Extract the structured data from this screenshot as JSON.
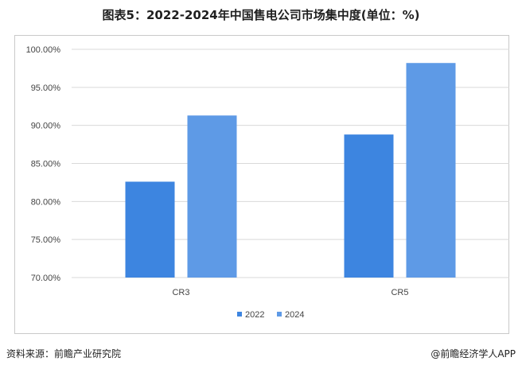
{
  "chart_data": {
    "type": "bar",
    "title": "图表5：2022-2024年中国售电公司市场集中度(单位：%)",
    "categories": [
      "CR3",
      "CR5"
    ],
    "series": [
      {
        "name": "2022",
        "values": [
          82.6,
          88.8
        ],
        "color": "#3d85e0"
      },
      {
        "name": "2024",
        "values": [
          91.3,
          98.2
        ],
        "color": "#5e9ae6"
      }
    ],
    "ylim": [
      70,
      100
    ],
    "yticks": [
      "70.00%",
      "75.00%",
      "80.00%",
      "85.00%",
      "90.00%",
      "95.00%",
      "100.00%"
    ],
    "ytick_values": [
      70,
      75,
      80,
      85,
      90,
      95,
      100
    ],
    "grid": true,
    "legend_position": "bottom"
  },
  "footer": {
    "source": "资料来源：前瞻产业研究院",
    "brand": "@前瞻经济学人APP"
  }
}
